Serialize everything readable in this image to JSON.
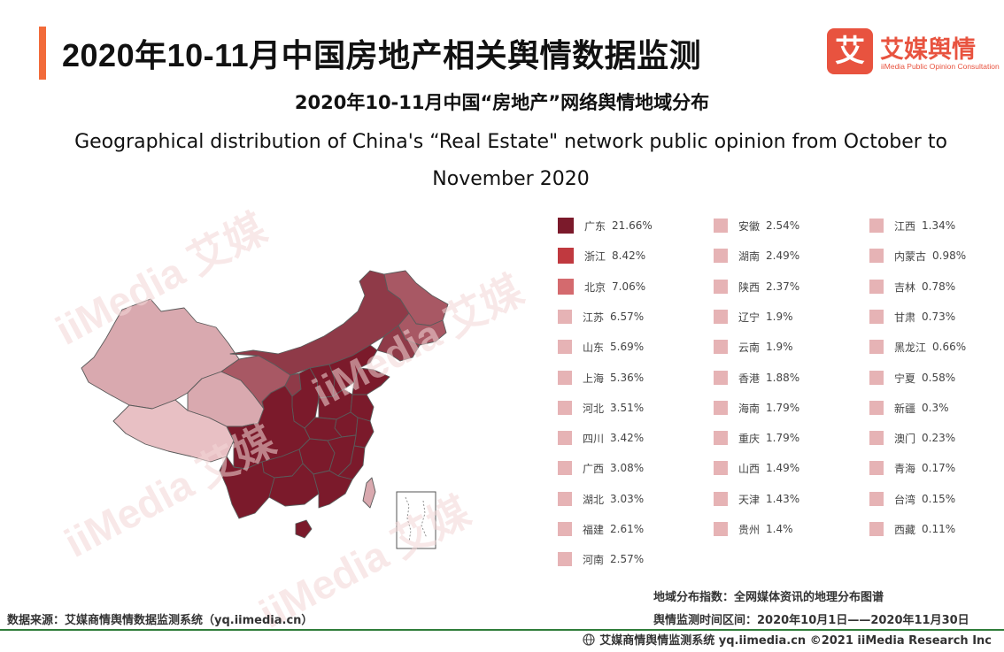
{
  "header": {
    "title": "2020年10-11月中国房地产相关舆情数据监测",
    "accent_color": "#f26b3a"
  },
  "logo": {
    "glyph": "艾",
    "name": "艾媒舆情",
    "sub": "iiMedia Public Opinion Consultation",
    "color": "#e8533f"
  },
  "chart_titles": {
    "cn": "2020年10-11月中国“房地产”网络舆情地域分布",
    "en": "Geographical distribution of China's “Real Estate\" network public opinion from October to November 2020"
  },
  "watermark_text": "iiMedia 艾媒",
  "chart_data": {
    "type": "choropleth-map",
    "unit": "%",
    "regions": [
      {
        "name": "广东",
        "value": 21.66,
        "color": "#7b1a2b"
      },
      {
        "name": "浙江",
        "value": 8.42,
        "color": "#c0393f"
      },
      {
        "name": "北京",
        "value": 7.06,
        "color": "#d46a6e"
      },
      {
        "name": "江苏",
        "value": 6.57,
        "color": "#e6b3b5"
      },
      {
        "name": "山东",
        "value": 5.69,
        "color": "#e6b3b5"
      },
      {
        "name": "上海",
        "value": 5.36,
        "color": "#e6b3b5"
      },
      {
        "name": "河北",
        "value": 3.51,
        "color": "#e6b3b5"
      },
      {
        "name": "四川",
        "value": 3.42,
        "color": "#e6b3b5"
      },
      {
        "name": "广西",
        "value": 3.08,
        "color": "#e6b3b5"
      },
      {
        "name": "湖北",
        "value": 3.03,
        "color": "#e6b3b5"
      },
      {
        "name": "福建",
        "value": 2.61,
        "color": "#e6b3b5"
      },
      {
        "name": "河南",
        "value": 2.57,
        "color": "#e6b3b5"
      },
      {
        "name": "安徽",
        "value": 2.54,
        "color": "#e6b3b5"
      },
      {
        "name": "湖南",
        "value": 2.49,
        "color": "#e6b3b5"
      },
      {
        "name": "陕西",
        "value": 2.37,
        "color": "#e6b3b5"
      },
      {
        "name": "辽宁",
        "value": 1.9,
        "color": "#e6b3b5"
      },
      {
        "name": "云南",
        "value": 1.9,
        "color": "#e6b3b5"
      },
      {
        "name": "香港",
        "value": 1.88,
        "color": "#e6b3b5"
      },
      {
        "name": "海南",
        "value": 1.79,
        "color": "#e6b3b5"
      },
      {
        "name": "重庆",
        "value": 1.79,
        "color": "#e6b3b5"
      },
      {
        "name": "山西",
        "value": 1.49,
        "color": "#e6b3b5"
      },
      {
        "name": "天津",
        "value": 1.43,
        "color": "#e6b3b5"
      },
      {
        "name": "贵州",
        "value": 1.4,
        "color": "#e6b3b5"
      },
      {
        "name": "江西",
        "value": 1.34,
        "color": "#e6b3b5"
      },
      {
        "name": "内蒙古",
        "value": 0.98,
        "color": "#e6b3b5"
      },
      {
        "name": "吉林",
        "value": 0.78,
        "color": "#e6b3b5"
      },
      {
        "name": "甘肃",
        "value": 0.73,
        "color": "#e6b3b5"
      },
      {
        "name": "黑龙江",
        "value": 0.66,
        "color": "#e6b3b5"
      },
      {
        "name": "宁夏",
        "value": 0.58,
        "color": "#e6b3b5"
      },
      {
        "name": "新疆",
        "value": 0.3,
        "color": "#e6b3b5"
      },
      {
        "name": "澳门",
        "value": 0.23,
        "color": "#e6b3b5"
      },
      {
        "name": "青海",
        "value": 0.17,
        "color": "#e6b3b5"
      },
      {
        "name": "台湾",
        "value": 0.15,
        "color": "#e6b3b5"
      },
      {
        "name": "西藏",
        "value": 0.11,
        "color": "#e6b3b5"
      }
    ],
    "legend_columns": 3
  },
  "map_colors": {
    "darkest": "#7b1a2b",
    "dark": "#8f3a48",
    "medium": "#a85864",
    "light": "#c58a92",
    "lighter": "#d9a9af",
    "lightest": "#e8c0c4",
    "border": "#5a5a5a"
  },
  "notes": {
    "source": "数据来源：艾媒商情舆情数据监测系统（yq.iimedia.cn）",
    "index_def": "地域分布指数：全网媒体资讯的地理分布图谱",
    "period": "舆情监测时间区间：2020年10月1日——2020年11月30日"
  },
  "footer": {
    "text": "艾媒商情舆情监测系统 yq.iimedia.cn  ©2021  iiMedia Research  Inc",
    "line_color": "#2f7d3a"
  }
}
